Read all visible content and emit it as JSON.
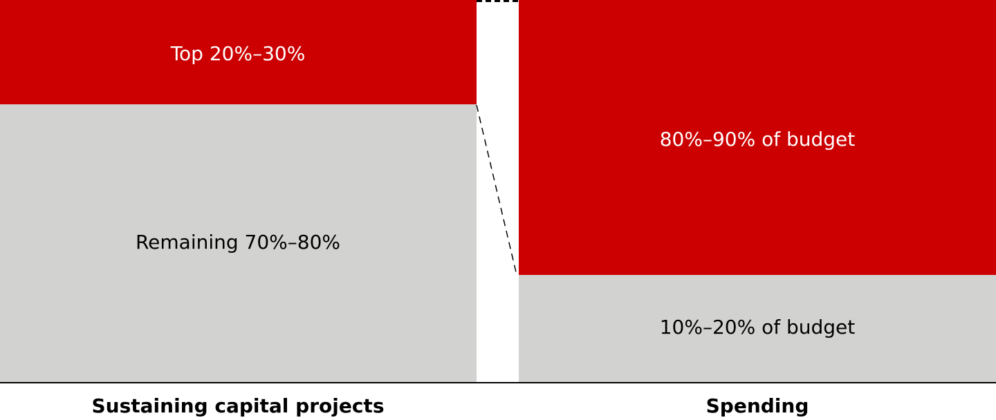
{
  "columns": [
    {
      "label": "Sustaining capital projects",
      "segments": [
        "Top 20%–30%",
        "Remaining 70%–80%"
      ]
    },
    {
      "label": "Spending",
      "segments": [
        "80%–90% of budget",
        "10%–20% of budget"
      ]
    }
  ]
}
